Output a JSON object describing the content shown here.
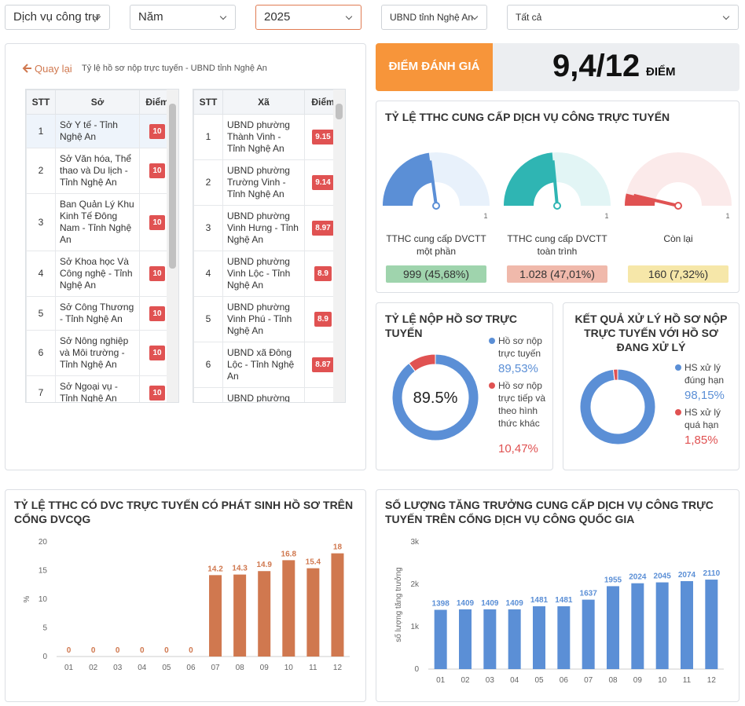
{
  "filters": [
    "Dịch vụ công trự",
    "Năm",
    "2025",
    "UBND tỉnh Nghệ An",
    "Tất cả"
  ],
  "score": {
    "label": "ĐIỂM ĐÁNH GIÁ",
    "value": "9,4/12",
    "unit": "ĐIỂM"
  },
  "detail": {
    "back": "Quay lại",
    "title": "Tỷ lệ hồ sơ nộp trực tuyến - UBND tỉnh Nghệ An",
    "tables": [
      {
        "headers": [
          "STT",
          "Sở",
          "Điểm"
        ],
        "rows": [
          [
            1,
            "Sở Y tế - Tỉnh Nghệ An",
            10
          ],
          [
            2,
            "Sở Văn hóa, Thể thao và Du lịch - Tỉnh Nghệ An",
            10
          ],
          [
            3,
            "Ban Quản Lý Khu Kinh Tế Đông Nam - Tỉnh Nghệ An",
            10
          ],
          [
            4,
            "Sở Khoa học Và Công nghệ - Tỉnh Nghệ An",
            10
          ],
          [
            5,
            "Sở Công Thương - Tỉnh Nghệ An",
            10
          ],
          [
            6,
            "Sở Nông nghiệp và Môi trường - Tỉnh Nghệ An",
            10
          ],
          [
            7,
            "Sở Ngoại vụ - Tỉnh Nghệ An",
            10
          ]
        ]
      },
      {
        "headers": [
          "STT",
          "Xã",
          "Điểm"
        ],
        "rows": [
          [
            1,
            "UBND phường Thành Vinh - Tỉnh Nghệ An",
            9.15
          ],
          [
            2,
            "UBND phường Trường Vinh - Tỉnh Nghệ An",
            9.14
          ],
          [
            3,
            "UBND phường Vinh Hưng - Tỉnh Nghệ An",
            8.97
          ],
          [
            4,
            "UBND phường Vinh Lộc - Tỉnh Nghệ An",
            8.9
          ],
          [
            5,
            "UBND phường Vinh Phú - Tỉnh Nghệ An",
            8.9
          ],
          [
            6,
            "UBND xã Đông Lộc - Tỉnh Nghệ An",
            8.87
          ],
          [
            "UBND phường"
          ]
        ]
      }
    ]
  },
  "chart_data": [
    {
      "type": "gauge",
      "title": "TỶ LỆ TTHC CUNG CẤP DỊCH VỤ CÔNG TRỰC TUYẾN",
      "ylim": [
        0,
        1
      ],
      "yticks": [
        1
      ],
      "series": [
        {
          "name": "TTHC cung cấp DVCTT một phần",
          "color": "#5b8fd6",
          "track_color": "#e8f1fb",
          "label_color": "#9fd4ad",
          "values": [
            0.4568
          ],
          "value_labels": [
            "999 (45,68%)"
          ]
        },
        {
          "name": "TTHC cung cấp DVCTT toàn trình",
          "color": "#2fb5b3",
          "track_color": "#e2f5f5",
          "label_color": "#f0b9ab",
          "values": [
            0.4701
          ],
          "value_labels": [
            "1.028 (47,01%)"
          ]
        },
        {
          "name": "Còn lại",
          "color": "#e05252",
          "track_color": "#fbeaea",
          "label_color": "#f6e7a9",
          "values": [
            0.0732
          ],
          "value_labels": [
            "160 (7,32%)"
          ]
        }
      ]
    },
    {
      "type": "donut",
      "title": "TỶ LỆ NỘP HỒ SƠ TRỰC TUYẾN",
      "center_label": "89.5%",
      "categories": [
        "Hồ sơ nộp trực tuyến",
        "Hồ sơ nộp trực tiếp và theo hình thức khác"
      ],
      "values": [
        89.53,
        10.47
      ],
      "value_labels": [
        "89,53%",
        "10,47%"
      ],
      "colors": [
        "#5b8fd6",
        "#e05252"
      ]
    },
    {
      "type": "donut",
      "title": "KẾT QUẢ XỬ LÝ HỒ SƠ NỘP TRỰC TUYẾN VỚI HỒ SƠ ĐANG XỬ LÝ",
      "categories": [
        "HS xử lý đúng hạn",
        "HS xử lý quá hạn"
      ],
      "values": [
        98.15,
        1.85
      ],
      "value_labels": [
        "98,15%",
        "1,85%"
      ],
      "colors": [
        "#5b8fd6",
        "#e05252"
      ]
    },
    {
      "type": "bar",
      "title": "TỶ LỆ TTHC CÓ DVC TRỰC TUYẾN CÓ PHÁT SINH HỒ SƠ TRÊN CỔNG DVCQG",
      "ylabel": "%",
      "categories": [
        "01",
        "02",
        "03",
        "04",
        "05",
        "06",
        "07",
        "08",
        "09",
        "10",
        "11",
        "12"
      ],
      "values": [
        0,
        0,
        0,
        0,
        0,
        0,
        14.2,
        14.3,
        14.9,
        16.8,
        15.4,
        18
      ],
      "color": "#d0784f",
      "ylim": [
        0,
        20
      ],
      "yticks": [
        0,
        5,
        10,
        15,
        20
      ],
      "grid": false
    },
    {
      "type": "bar",
      "title": "SỐ LƯỢNG TĂNG TRƯỞNG CUNG CẤP DỊCH VỤ CÔNG TRỰC TUYẾN TRÊN CỔNG DỊCH VỤ CÔNG QUỐC GIA",
      "ylabel": "số lượng tăng trưởng",
      "categories": [
        "01",
        "02",
        "03",
        "04",
        "05",
        "06",
        "07",
        "08",
        "09",
        "10",
        "11",
        "12"
      ],
      "values": [
        1398,
        1409,
        1409,
        1409,
        1481,
        1481,
        1637,
        1955,
        2024,
        2045,
        2074,
        2110
      ],
      "color": "#5b8fd6",
      "ylim": [
        0,
        3000
      ],
      "yticks": [
        0,
        {
          "value": 1000,
          "label": "1k"
        },
        {
          "value": 2000,
          "label": "2k"
        },
        {
          "value": 3000,
          "label": "3k"
        }
      ],
      "grid": false
    }
  ]
}
